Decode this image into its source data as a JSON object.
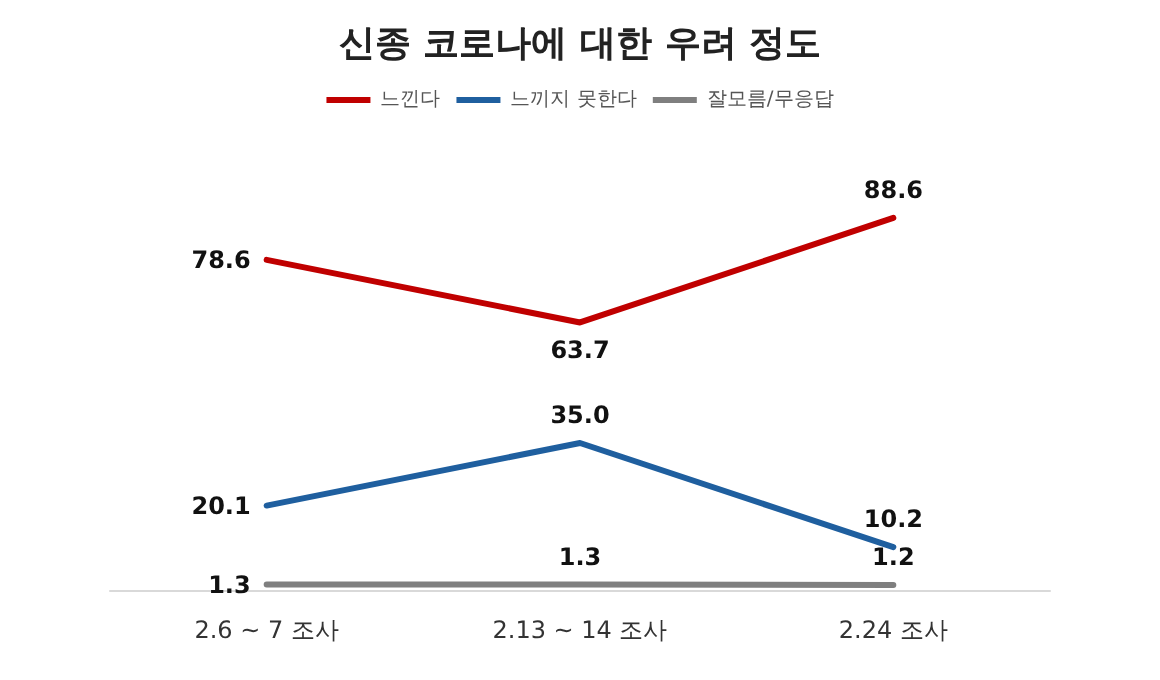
{
  "chart_data": {
    "type": "line",
    "title": "신종 코로나에 대한 우려 정도",
    "categories": [
      "2.6 ~ 7 조사",
      "2.13 ~ 14 조사",
      "2.24 조사"
    ],
    "series": [
      {
        "name": "느낀다",
        "color": "#c00000",
        "values": [
          78.6,
          63.7,
          88.6
        ],
        "value_labels": [
          "78.6",
          "63.7",
          "88.6"
        ]
      },
      {
        "name": "느끼지 못한다",
        "color": "#1f5f9f",
        "values": [
          20.1,
          35.0,
          10.2
        ],
        "value_labels": [
          "20.1",
          "35.0",
          "10.2"
        ]
      },
      {
        "name": "잘모름/무응답",
        "color": "#7f7f7f",
        "values": [
          1.3,
          1.3,
          1.2
        ],
        "value_labels": [
          "1.3",
          "1.3",
          "1.2"
        ]
      }
    ],
    "legend": "top",
    "grid": false,
    "marker": "none",
    "line_style": "solid"
  }
}
